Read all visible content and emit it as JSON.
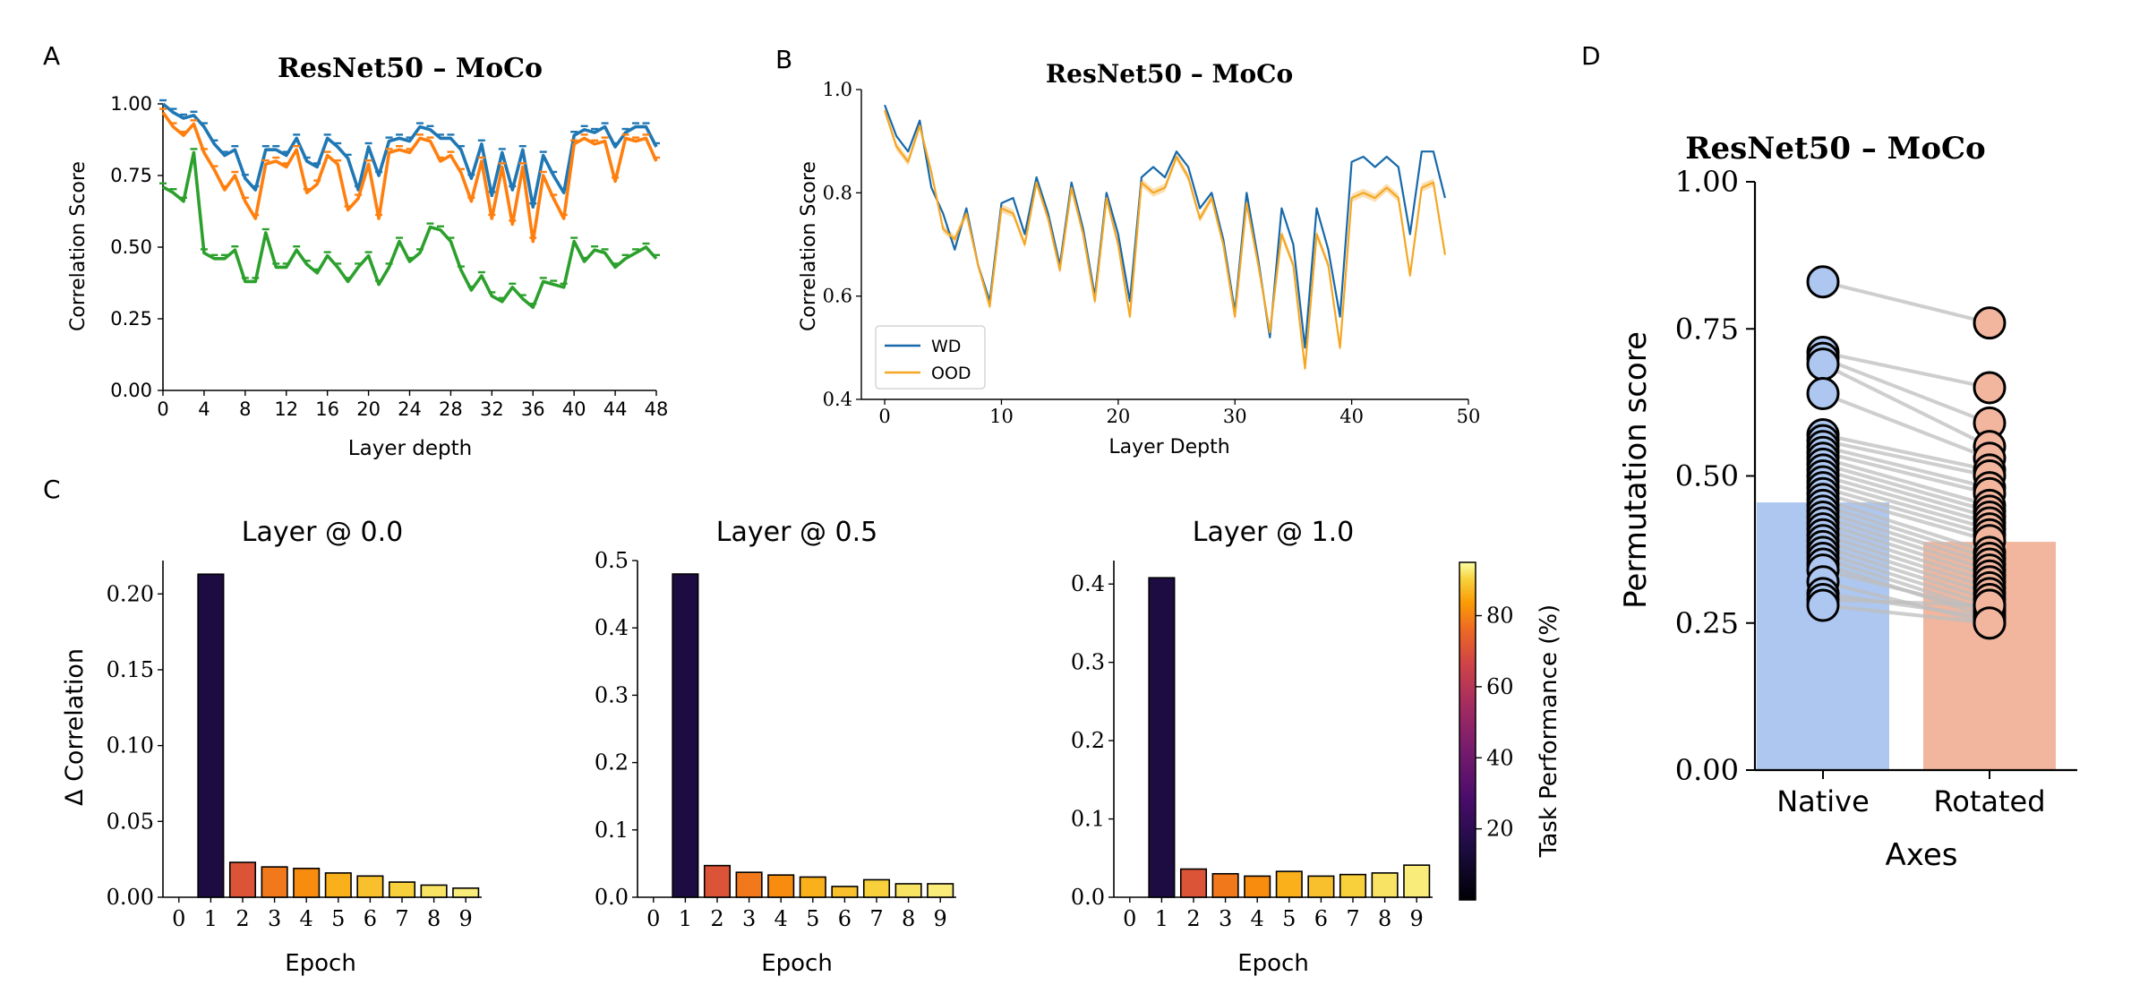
{
  "panel_letters": {
    "a": "A",
    "b": "B",
    "c": "C",
    "d": "D"
  },
  "colors": {
    "blue": "#1f77b4",
    "orange": "#ff7f0e",
    "green": "#2ca02c",
    "wd": "#1769aa",
    "ood": "#f5a623",
    "native": "#aec7f0",
    "rotated": "#f2b69e"
  },
  "chart_data": [
    {
      "id": "A",
      "type": "line",
      "title": "ResNet50 – MoCo",
      "xlabel": "Layer depth",
      "ylabel": "Correlation Score",
      "xlim": [
        0,
        48
      ],
      "ylim": [
        0,
        1
      ],
      "xticks": [
        0,
        4,
        8,
        12,
        16,
        20,
        24,
        28,
        32,
        36,
        40,
        44,
        48
      ],
      "yticks": [
        "0.00",
        "0.25",
        "0.50",
        "0.75",
        "1.00"
      ],
      "x": [
        0,
        1,
        2,
        3,
        4,
        5,
        6,
        7,
        8,
        9,
        10,
        11,
        12,
        13,
        14,
        15,
        16,
        17,
        18,
        19,
        20,
        21,
        22,
        23,
        24,
        25,
        26,
        27,
        28,
        29,
        30,
        31,
        32,
        33,
        34,
        35,
        36,
        37,
        38,
        39,
        40,
        41,
        42,
        43,
        44,
        45,
        46,
        47,
        48
      ],
      "series": [
        {
          "name": "blue",
          "values": [
            1.0,
            0.97,
            0.95,
            0.96,
            0.92,
            0.86,
            0.82,
            0.84,
            0.74,
            0.7,
            0.84,
            0.84,
            0.82,
            0.88,
            0.8,
            0.78,
            0.88,
            0.85,
            0.81,
            0.7,
            0.85,
            0.75,
            0.87,
            0.88,
            0.87,
            0.92,
            0.91,
            0.88,
            0.88,
            0.84,
            0.74,
            0.86,
            0.68,
            0.83,
            0.7,
            0.84,
            0.64,
            0.82,
            0.75,
            0.69,
            0.89,
            0.91,
            0.9,
            0.92,
            0.85,
            0.9,
            0.92,
            0.92,
            0.85
          ]
        },
        {
          "name": "orange",
          "values": [
            0.97,
            0.92,
            0.89,
            0.93,
            0.83,
            0.77,
            0.7,
            0.75,
            0.66,
            0.6,
            0.79,
            0.8,
            0.78,
            0.84,
            0.69,
            0.72,
            0.82,
            0.79,
            0.63,
            0.67,
            0.79,
            0.6,
            0.83,
            0.84,
            0.83,
            0.88,
            0.87,
            0.8,
            0.82,
            0.76,
            0.66,
            0.8,
            0.6,
            0.78,
            0.58,
            0.78,
            0.52,
            0.75,
            0.67,
            0.6,
            0.86,
            0.88,
            0.86,
            0.87,
            0.73,
            0.88,
            0.87,
            0.88,
            0.8
          ]
        },
        {
          "name": "green",
          "values": [
            0.71,
            0.69,
            0.66,
            0.83,
            0.48,
            0.46,
            0.46,
            0.49,
            0.38,
            0.38,
            0.55,
            0.43,
            0.43,
            0.49,
            0.44,
            0.41,
            0.47,
            0.43,
            0.38,
            0.43,
            0.47,
            0.37,
            0.43,
            0.52,
            0.45,
            0.48,
            0.57,
            0.56,
            0.52,
            0.42,
            0.35,
            0.4,
            0.33,
            0.31,
            0.36,
            0.32,
            0.29,
            0.38,
            0.37,
            0.36,
            0.52,
            0.45,
            0.49,
            0.48,
            0.43,
            0.46,
            0.48,
            0.5,
            0.46
          ]
        }
      ]
    },
    {
      "id": "B",
      "type": "line",
      "title": "ResNet50 – MoCo",
      "xlabel": "Layer Depth",
      "ylabel": "Correlation Score",
      "xlim": [
        -2,
        50
      ],
      "ylim": [
        0.4,
        1.0
      ],
      "xticks": [
        0,
        10,
        20,
        30,
        40,
        50
      ],
      "yticks": [
        "0.4",
        "0.6",
        "0.8",
        "1.0"
      ],
      "legend": {
        "position": "lower-left",
        "entries": [
          "WD",
          "OOD"
        ]
      },
      "x": [
        0,
        1,
        2,
        3,
        4,
        5,
        6,
        7,
        8,
        9,
        10,
        11,
        12,
        13,
        14,
        15,
        16,
        17,
        18,
        19,
        20,
        21,
        22,
        23,
        24,
        25,
        26,
        27,
        28,
        29,
        30,
        31,
        32,
        33,
        34,
        35,
        36,
        37,
        38,
        39,
        40,
        41,
        42,
        43,
        44,
        45,
        46,
        47,
        48
      ],
      "series": [
        {
          "name": "WD",
          "values": [
            0.97,
            0.91,
            0.88,
            0.94,
            0.81,
            0.76,
            0.69,
            0.77,
            0.66,
            0.59,
            0.78,
            0.79,
            0.72,
            0.83,
            0.76,
            0.66,
            0.82,
            0.73,
            0.6,
            0.8,
            0.72,
            0.59,
            0.83,
            0.85,
            0.83,
            0.88,
            0.85,
            0.77,
            0.8,
            0.71,
            0.57,
            0.8,
            0.67,
            0.52,
            0.77,
            0.7,
            0.5,
            0.77,
            0.69,
            0.56,
            0.86,
            0.87,
            0.85,
            0.87,
            0.85,
            0.72,
            0.88,
            0.88,
            0.79
          ]
        },
        {
          "name": "OOD",
          "values": [
            0.96,
            0.89,
            0.86,
            0.93,
            0.84,
            0.73,
            0.71,
            0.76,
            0.66,
            0.58,
            0.77,
            0.76,
            0.7,
            0.82,
            0.75,
            0.65,
            0.81,
            0.72,
            0.59,
            0.79,
            0.7,
            0.56,
            0.82,
            0.8,
            0.81,
            0.87,
            0.83,
            0.75,
            0.79,
            0.7,
            0.56,
            0.78,
            0.66,
            0.53,
            0.72,
            0.66,
            0.46,
            0.72,
            0.66,
            0.5,
            0.79,
            0.8,
            0.79,
            0.81,
            0.79,
            0.64,
            0.81,
            0.82,
            0.68
          ]
        }
      ]
    },
    {
      "id": "C1",
      "type": "bar",
      "title": "Layer @ 0.0",
      "xlabel": "Epoch",
      "ylabel": "Δ Correlation",
      "categories": [
        "1",
        "2",
        "3",
        "4",
        "5",
        "6",
        "7",
        "8",
        "9"
      ],
      "values": [
        0.213,
        0.023,
        0.02,
        0.019,
        0.016,
        0.014,
        0.01,
        0.008,
        0.006
      ],
      "performance": [
        15,
        72,
        80,
        83,
        88,
        90,
        92,
        94,
        95
      ],
      "ylim": [
        0,
        0.222
      ],
      "xticks": [
        "0",
        "1",
        "2",
        "3",
        "4",
        "5",
        "6",
        "7",
        "8",
        "9"
      ],
      "yticks": [
        "0.00",
        "0.05",
        "0.10",
        "0.15",
        "0.20"
      ]
    },
    {
      "id": "C2",
      "type": "bar",
      "title": "Layer @ 0.5",
      "xlabel": "Epoch",
      "ylabel": "",
      "categories": [
        "1",
        "2",
        "3",
        "4",
        "5",
        "6",
        "7",
        "8",
        "9"
      ],
      "values": [
        0.48,
        0.047,
        0.037,
        0.033,
        0.03,
        0.016,
        0.026,
        0.02,
        0.02
      ],
      "performance": [
        15,
        72,
        80,
        83,
        88,
        90,
        92,
        94,
        95
      ],
      "ylim": [
        0,
        0.5
      ],
      "xticks": [
        "0",
        "1",
        "2",
        "3",
        "4",
        "5",
        "6",
        "7",
        "8",
        "9"
      ],
      "yticks": [
        "0.0",
        "0.1",
        "0.2",
        "0.3",
        "0.4",
        "0.5"
      ]
    },
    {
      "id": "C3",
      "type": "bar",
      "title": "Layer @ 1.0",
      "xlabel": "Epoch",
      "ylabel": "",
      "categories": [
        "1",
        "2",
        "3",
        "4",
        "5",
        "6",
        "7",
        "8",
        "9"
      ],
      "values": [
        0.408,
        0.036,
        0.03,
        0.027,
        0.033,
        0.027,
        0.029,
        0.031,
        0.041
      ],
      "performance": [
        15,
        72,
        80,
        83,
        88,
        90,
        92,
        94,
        95
      ],
      "ylim": [
        0,
        0.43
      ],
      "xticks": [
        "0",
        "1",
        "2",
        "3",
        "4",
        "5",
        "6",
        "7",
        "8",
        "9"
      ],
      "yticks": [
        "0.0",
        "0.1",
        "0.2",
        "0.3",
        "0.4"
      ],
      "colorbar": {
        "label": "Task Performance (%)",
        "ticks": [
          "20",
          "40",
          "60",
          "80"
        ],
        "range": [
          0,
          95
        ]
      }
    },
    {
      "id": "D",
      "type": "bar",
      "title": "ResNet50 – MoCo",
      "xlabel": "Axes",
      "ylabel": "Permutation score",
      "categories": [
        "Native",
        "Rotated"
      ],
      "values": [
        0.455,
        0.388
      ],
      "ylim": [
        0,
        1.0
      ],
      "yticks": [
        "0.00",
        "0.25",
        "0.50",
        "0.75",
        "1.00"
      ],
      "pairs": [
        [
          0.83,
          0.76
        ],
        [
          0.71,
          0.65
        ],
        [
          0.7,
          0.59
        ],
        [
          0.69,
          0.55
        ],
        [
          0.64,
          0.53
        ],
        [
          0.57,
          0.51
        ],
        [
          0.56,
          0.5
        ],
        [
          0.55,
          0.48
        ],
        [
          0.54,
          0.47
        ],
        [
          0.53,
          0.45
        ],
        [
          0.52,
          0.44
        ],
        [
          0.51,
          0.43
        ],
        [
          0.5,
          0.42
        ],
        [
          0.49,
          0.41
        ],
        [
          0.48,
          0.4
        ],
        [
          0.47,
          0.39
        ],
        [
          0.46,
          0.37
        ],
        [
          0.45,
          0.36
        ],
        [
          0.44,
          0.35
        ],
        [
          0.43,
          0.34
        ],
        [
          0.42,
          0.33
        ],
        [
          0.41,
          0.32
        ],
        [
          0.4,
          0.31
        ],
        [
          0.39,
          0.3
        ],
        [
          0.38,
          0.29
        ],
        [
          0.37,
          0.28
        ],
        [
          0.36,
          0.27
        ],
        [
          0.35,
          0.26
        ],
        [
          0.34,
          0.27
        ],
        [
          0.32,
          0.25
        ],
        [
          0.3,
          0.26
        ],
        [
          0.29,
          0.28
        ],
        [
          0.28,
          0.25
        ]
      ]
    }
  ]
}
